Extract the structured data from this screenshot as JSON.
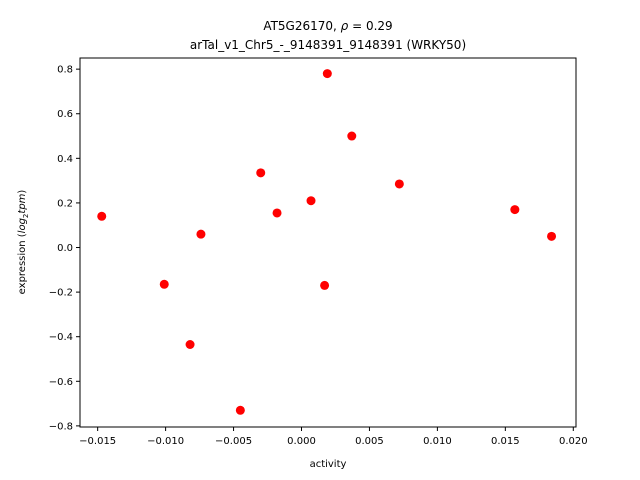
{
  "chart_data": {
    "type": "scatter",
    "title_line1_prefix": "AT5G26170, ",
    "title_line1_rho": "ρ",
    "title_line1_suffix": " = 0.29",
    "title_line2": "arTal_v1_Chr5_-_9148391_9148391 (WRKY50)",
    "xlabel": "activity",
    "ylabel_prefix": "expression (",
    "ylabel_log": "log",
    "ylabel_sub": "2",
    "ylabel_tpm": "tpm",
    "ylabel_suffix": ")",
    "xlim": [
      -0.0163,
      0.0202
    ],
    "ylim": [
      -0.805,
      0.85
    ],
    "xticks": [
      -0.015,
      -0.01,
      -0.005,
      0.0,
      0.005,
      0.01,
      0.015,
      0.02
    ],
    "xtick_labels": [
      "−0.015",
      "−0.010",
      "−0.005",
      "0.000",
      "0.005",
      "0.010",
      "0.015",
      "0.020"
    ],
    "yticks": [
      -0.8,
      -0.6,
      -0.4,
      -0.2,
      0.0,
      0.2,
      0.4,
      0.6,
      0.8
    ],
    "ytick_labels": [
      "−0.8",
      "−0.6",
      "−0.4",
      "−0.2",
      "0.0",
      "0.2",
      "0.4",
      "0.6",
      "0.8"
    ],
    "marker_color": "#ff0000",
    "points": [
      {
        "x": -0.0147,
        "y": 0.14
      },
      {
        "x": -0.0101,
        "y": -0.165
      },
      {
        "x": -0.0082,
        "y": -0.435
      },
      {
        "x": -0.0074,
        "y": 0.06
      },
      {
        "x": -0.0045,
        "y": -0.73
      },
      {
        "x": -0.003,
        "y": 0.335
      },
      {
        "x": -0.0018,
        "y": 0.155
      },
      {
        "x": 0.0007,
        "y": 0.21
      },
      {
        "x": 0.0017,
        "y": -0.17
      },
      {
        "x": 0.0019,
        "y": 0.78
      },
      {
        "x": 0.0037,
        "y": 0.5
      },
      {
        "x": 0.0072,
        "y": 0.285
      },
      {
        "x": 0.0157,
        "y": 0.17
      },
      {
        "x": 0.0184,
        "y": 0.05
      }
    ]
  }
}
